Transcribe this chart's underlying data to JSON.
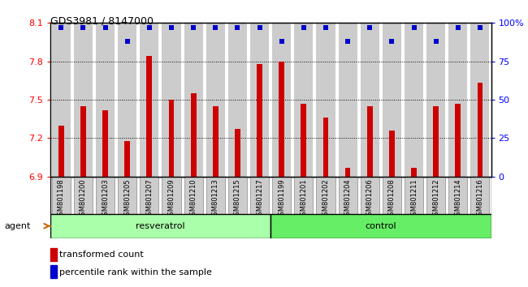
{
  "title": "GDS3981 / 8147000",
  "categories": [
    "GSM801198",
    "GSM801200",
    "GSM801203",
    "GSM801205",
    "GSM801207",
    "GSM801209",
    "GSM801210",
    "GSM801213",
    "GSM801215",
    "GSM801217",
    "GSM801199",
    "GSM801201",
    "GSM801202",
    "GSM801204",
    "GSM801206",
    "GSM801208",
    "GSM801211",
    "GSM801212",
    "GSM801214",
    "GSM801216"
  ],
  "bar_values": [
    7.3,
    7.45,
    7.42,
    7.18,
    7.84,
    7.5,
    7.55,
    7.45,
    7.27,
    7.78,
    7.8,
    7.47,
    7.36,
    6.97,
    7.45,
    7.26,
    6.97,
    7.45,
    7.47,
    7.63
  ],
  "percentile_values": [
    97,
    97,
    97,
    88,
    97,
    97,
    97,
    97,
    97,
    97,
    88,
    97,
    97,
    88,
    97,
    88,
    97,
    88,
    97,
    97
  ],
  "resveratrol_count": 10,
  "control_count": 10,
  "ymin": 6.9,
  "ymax": 8.1,
  "ylim_right": [
    0,
    100
  ],
  "yticks_left": [
    6.9,
    7.2,
    7.5,
    7.8,
    8.1
  ],
  "yticks_right": [
    0,
    25,
    50,
    75,
    100
  ],
  "bar_color": "#cc0000",
  "dot_color": "#0000cc",
  "resveratrol_color": "#aaffaa",
  "control_color": "#66ee66",
  "agent_arrow_color": "#cc6600",
  "grid_color": "#000000",
  "background_bar_color": "#cccccc",
  "legend_bar_label": "transformed count",
  "legend_dot_label": "percentile rank within the sample"
}
